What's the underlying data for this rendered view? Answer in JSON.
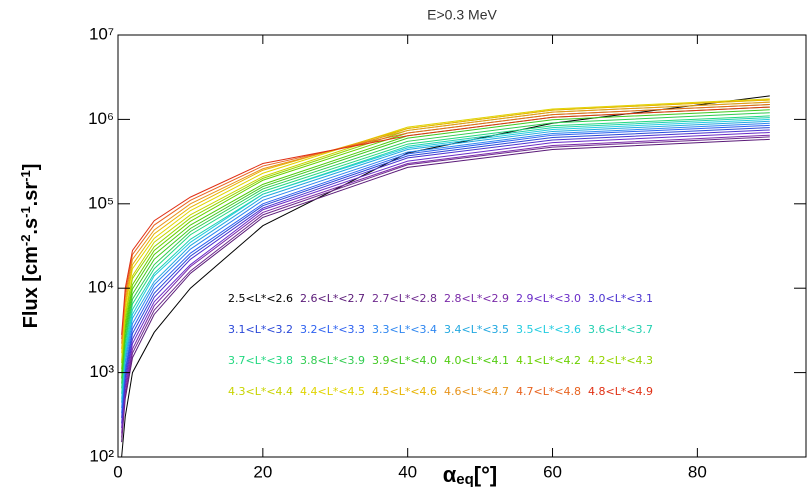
{
  "chart_data": {
    "type": "line",
    "title": "E>0.3 MeV",
    "x_label": [
      "α",
      "eq",
      "[°]"
    ],
    "y_label": [
      "Flux [cm",
      "-2",
      ".s",
      "-1",
      ".sr",
      "-1",
      "]"
    ],
    "x": [
      0.5,
      1,
      2,
      5,
      10,
      20,
      40,
      60,
      90
    ],
    "xlim": [
      0,
      95
    ],
    "xticks": [
      0,
      20,
      40,
      60,
      80
    ],
    "ylim": [
      100,
      10000000
    ],
    "log_y": true,
    "yticks": [
      {
        "value": 100,
        "label": "10²"
      },
      {
        "value": 1000,
        "label": "10³"
      },
      {
        "value": 10000,
        "label": "10⁴"
      },
      {
        "value": 100000,
        "label": "10⁵"
      },
      {
        "value": 1000000,
        "label": "10⁶"
      },
      {
        "value": 10000000,
        "label": "10⁷"
      }
    ],
    "legend_columns": 6,
    "series": [
      {
        "name": "2.5<L*<2.6",
        "color": "#000000",
        "values": [
          100,
          300,
          1000,
          3000,
          10000,
          55000,
          400000,
          900000,
          1900000
        ]
      },
      {
        "name": "2.6<L*<2.7",
        "color": "#5a1a78",
        "values": [
          150,
          490,
          1500,
          4900,
          15000,
          69000,
          270000,
          440000,
          580000
        ]
      },
      {
        "name": "2.7<L*<2.8",
        "color": "#6e2a8e",
        "values": [
          170,
          560,
          1700,
          5500,
          16000,
          74000,
          290000,
          470000,
          620000
        ]
      },
      {
        "name": "2.8<L*<2.9",
        "color": "#7a2aa8",
        "values": [
          190,
          650,
          1900,
          6200,
          18000,
          79000,
          300000,
          490000,
          650000
        ]
      },
      {
        "name": "2.9<L*<3.0",
        "color": "#6a2cc8",
        "values": [
          220,
          740,
          2200,
          6900,
          19000,
          85000,
          320000,
          530000,
          700000
        ]
      },
      {
        "name": "3.0<L*<3.1",
        "color": "#4a32d0",
        "values": [
          250,
          850,
          2500,
          7800,
          22000,
          89000,
          350000,
          570000,
          750000
        ]
      },
      {
        "name": "3.1<L*<3.2",
        "color": "#2a48d8",
        "values": [
          290,
          980,
          2900,
          8700,
          24000,
          95000,
          370000,
          610000,
          800000
        ]
      },
      {
        "name": "3.2<L*<3.3",
        "color": "#2e62f0",
        "values": [
          330,
          1100,
          3300,
          9800,
          26000,
          100000,
          390000,
          650000,
          850000
        ]
      },
      {
        "name": "3.3<L*<3.4",
        "color": "#2e86f0",
        "values": [
          380,
          1300,
          3800,
          11000,
          29000,
          110000,
          410000,
          680000,
          900000
        ]
      },
      {
        "name": "3.4<L*<3.5",
        "color": "#22a8e0",
        "values": [
          440,
          1500,
          4400,
          12000,
          32000,
          120000,
          440000,
          720000,
          950000
        ]
      },
      {
        "name": "3.5<L*<3.6",
        "color": "#22cce0",
        "values": [
          490,
          1700,
          4900,
          14000,
          35000,
          130000,
          460000,
          760000,
          1000000
        ]
      },
      {
        "name": "3.6<L*<3.7",
        "color": "#22d0b0",
        "values": [
          560,
          1900,
          5600,
          15000,
          38000,
          130000,
          480000,
          800000,
          1050000
        ]
      },
      {
        "name": "3.7<L*<3.8",
        "color": "#22d880",
        "values": [
          650,
          2200,
          6500,
          17000,
          43000,
          140000,
          510000,
          840000,
          1100000
        ]
      },
      {
        "name": "3.8<L*<3.9",
        "color": "#30cc50",
        "values": [
          740,
          2500,
          7400,
          19000,
          47000,
          150000,
          550000,
          910000,
          1200000
        ]
      },
      {
        "name": "3.9<L*<4.0",
        "color": "#40c820",
        "values": [
          850,
          2900,
          8500,
          22000,
          51000,
          160000,
          600000,
          990000,
          1300000
        ]
      },
      {
        "name": "4.0<L*<4.1",
        "color": "#50cc10",
        "values": [
          980,
          3300,
          9800,
          25000,
          56000,
          170000,
          640000,
          1060000,
          1400000
        ]
      },
      {
        "name": "4.1<L*<4.2",
        "color": "#6ad000",
        "values": [
          1100,
          3800,
          11000,
          28000,
          62000,
          190000,
          690000,
          1140000,
          1500000
        ]
      },
      {
        "name": "4.2<L*<4.3",
        "color": "#94d400",
        "values": [
          1300,
          4400,
          13000,
          31000,
          68000,
          200000,
          740000,
          1220000,
          1600000
        ]
      },
      {
        "name": "4.3<L*<4.4",
        "color": "#c8d400",
        "values": [
          1400,
          5000,
          14000,
          35000,
          74000,
          210000,
          780000,
          1290000,
          1700000
        ]
      },
      {
        "name": "4.4<L*<4.5",
        "color": "#e0d400",
        "values": [
          1700,
          5800,
          17000,
          39000,
          83000,
          230000,
          810000,
          1330000,
          1750000
        ]
      },
      {
        "name": "4.5<L*<4.6",
        "color": "#e8b400",
        "values": [
          1900,
          6600,
          19000,
          44000,
          91000,
          250000,
          780000,
          1290000,
          1700000
        ]
      },
      {
        "name": "4.6<L*<4.7",
        "color": "#e8941c",
        "values": [
          2200,
          7600,
          22000,
          49000,
          100000,
          260000,
          740000,
          1220000,
          1600000
        ]
      },
      {
        "name": "4.7<L*<4.8",
        "color": "#e86420",
        "values": [
          2500,
          8700,
          25000,
          56000,
          110000,
          280000,
          690000,
          1140000,
          1500000
        ]
      },
      {
        "name": "4.8<L*<4.9",
        "color": "#e03014",
        "values": [
          2800,
          10000,
          28000,
          63000,
          120000,
          300000,
          640000,
          1060000,
          1400000
        ]
      }
    ]
  }
}
